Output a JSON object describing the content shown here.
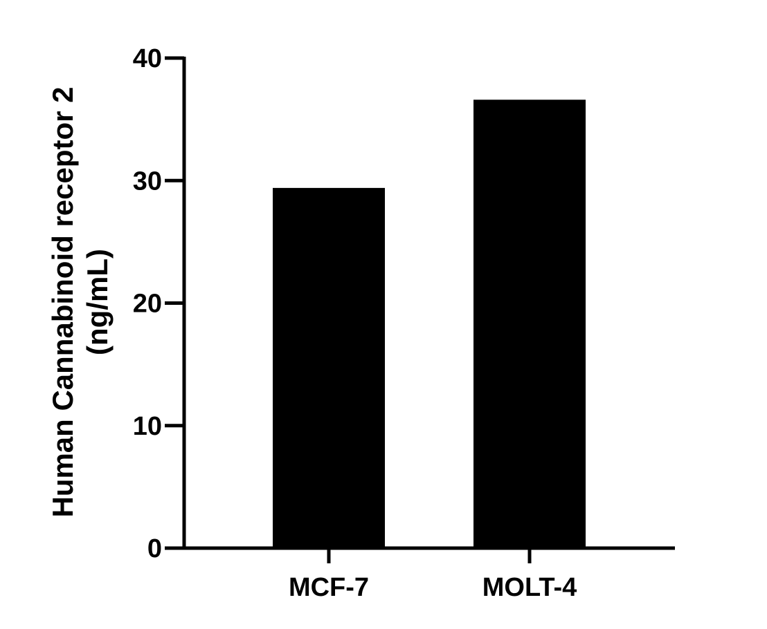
{
  "chart_data": {
    "type": "bar",
    "categories": [
      "MCF-7",
      "MOLT-4"
    ],
    "values": [
      29.4,
      36.6
    ],
    "title": "",
    "xlabel": "",
    "ylabel_lines": [
      "Human Cannabinoid receptor 2",
      "(ng/mL)"
    ],
    "ylim": [
      0,
      40
    ],
    "yticks": [
      0,
      10,
      20,
      30,
      40
    ],
    "bar_color": "#000000",
    "grid": false
  }
}
